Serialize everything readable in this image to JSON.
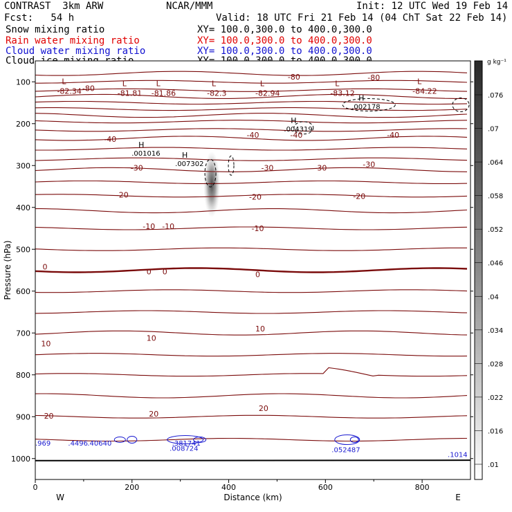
{
  "header": {
    "model": "CONTRAST  3km ARW",
    "org": "NCAR/MMM",
    "init": "Init: 12 UTC Wed 19 Feb 14",
    "fcst": "Fcst:   54 h",
    "valid": "Valid: 18 UTC Fri 21 Feb 14 (04 ChT Sat 22 Feb 14)"
  },
  "fields": [
    {
      "name": "Snow mixing ratio",
      "xy": "XY= 100.0,300.0 to 400.0,300.0",
      "color": "#000000"
    },
    {
      "name": "Rain water mixing ratio",
      "xy": "XY= 100.0,300.0 to 400.0,300.0",
      "color": "#e00000"
    },
    {
      "name": "Cloud water mixing ratio",
      "xy": "XY= 100.0,300.0 to 400.0,300.0",
      "color": "#1010d0"
    },
    {
      "name": "Cloud ice mixing ratio",
      "xy": "XY= 100.0,300.0 to 400.0,300.0",
      "color": "#000000"
    }
  ],
  "colorbar": {
    "unit": "g kg⁻¹",
    "labels": [
      ".076",
      ".07",
      ".064",
      ".058",
      ".052",
      ".046",
      ".04",
      ".034",
      ".028",
      ".022",
      ".016",
      ".01"
    ]
  },
  "chart_data": {
    "type": "cross-section",
    "xlabel": "Distance (km)",
    "ylabel": "Pressure (hPa)",
    "xlim": [
      0,
      900
    ],
    "ylim": [
      1050,
      50
    ],
    "xticks": [
      0,
      200,
      400,
      600,
      800
    ],
    "yticks": [
      100,
      200,
      300,
      400,
      500,
      600,
      700,
      800,
      900,
      1000
    ],
    "left_label": "W",
    "right_label": "E",
    "temperature_labels": [
      {
        "text": "-80",
        "x": 110,
        "p": 115
      },
      {
        "text": "-80",
        "x": 535,
        "p": 88
      },
      {
        "text": "-80",
        "x": 700,
        "p": 90
      },
      {
        "text": "-40",
        "x": 155,
        "p": 237
      },
      {
        "text": "-40",
        "x": 450,
        "p": 227
      },
      {
        "text": "-40",
        "x": 540,
        "p": 227
      },
      {
        "text": "-40",
        "x": 740,
        "p": 227
      },
      {
        "text": "-30",
        "x": 210,
        "p": 305
      },
      {
        "text": "-30",
        "x": 480,
        "p": 305
      },
      {
        "text": "-30",
        "x": 590,
        "p": 305
      },
      {
        "text": "-30",
        "x": 690,
        "p": 297
      },
      {
        "text": "-20",
        "x": 180,
        "p": 370
      },
      {
        "text": "-20",
        "x": 455,
        "p": 375
      },
      {
        "text": "-20",
        "x": 670,
        "p": 373
      },
      {
        "text": "-10",
        "x": 235,
        "p": 445
      },
      {
        "text": "-10",
        "x": 275,
        "p": 445
      },
      {
        "text": "-10",
        "x": 460,
        "p": 450
      },
      {
        "text": "0",
        "x": 20,
        "p": 542
      },
      {
        "text": "0",
        "x": 235,
        "p": 553
      },
      {
        "text": "0",
        "x": 268,
        "p": 553
      },
      {
        "text": "0",
        "x": 460,
        "p": 560
      },
      {
        "text": "10",
        "x": 22,
        "p": 725
      },
      {
        "text": "10",
        "x": 240,
        "p": 712
      },
      {
        "text": "10",
        "x": 465,
        "p": 690
      },
      {
        "text": "20",
        "x": 28,
        "p": 898
      },
      {
        "text": "20",
        "x": 245,
        "p": 893
      },
      {
        "text": "20",
        "x": 472,
        "p": 880
      }
    ],
    "low_markers": [
      {
        "value": "-82.34",
        "x": 45,
        "p": 115
      },
      {
        "value": "-81.81",
        "x": 170,
        "p": 120
      },
      {
        "value": "-81.86",
        "x": 240,
        "p": 120
      },
      {
        "value": "-82.3",
        "x": 355,
        "p": 120
      },
      {
        "value": "-82.94",
        "x": 455,
        "p": 120
      },
      {
        "value": "-83.12",
        "x": 610,
        "p": 120
      },
      {
        "value": "-84.22",
        "x": 780,
        "p": 115
      }
    ],
    "high_markers": [
      {
        "value": ".001016",
        "x": 225,
        "p": 270
      },
      {
        "value": ".007302",
        "x": 315,
        "p": 295
      },
      {
        "value": ".004319",
        "x": 540,
        "p": 212
      },
      {
        "value": ".002178",
        "x": 680,
        "p": 158
      }
    ],
    "cloud_markers": [
      {
        "value": ".969",
        "x": 10,
        "p": 962
      },
      {
        "value": ".4496",
        "x": 85,
        "p": 962
      },
      {
        "value": ".40640",
        "x": 125,
        "p": 962
      },
      {
        "value": ".381741",
        "x": 300,
        "p": 962
      },
      {
        "value": ".008724",
        "x": 295,
        "p": 975
      },
      {
        "value": ".052487",
        "x": 630,
        "p": 978
      },
      {
        "value": ".1014",
        "x": 870,
        "p": 990
      }
    ],
    "snow_max": {
      "x": 365,
      "p": 345,
      "value": 0.076
    }
  }
}
